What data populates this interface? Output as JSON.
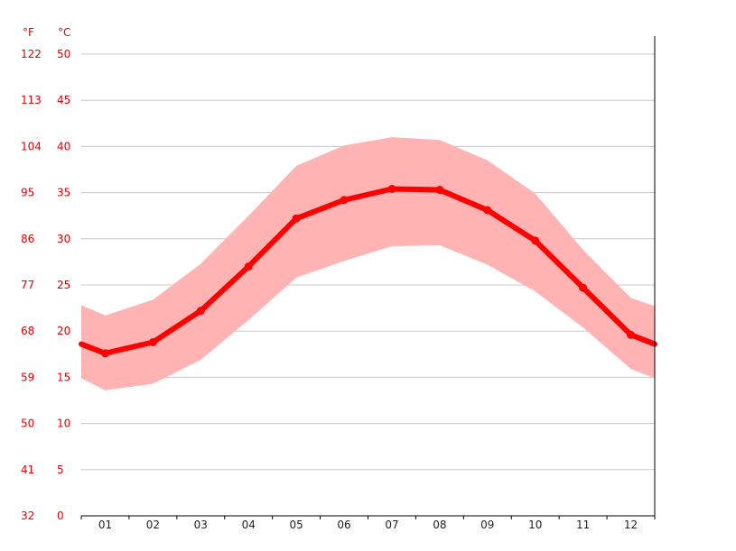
{
  "chart_data": {
    "type": "line",
    "y_unit_left": "°F",
    "y_unit_right": "°C",
    "categories": [
      "01",
      "02",
      "03",
      "04",
      "05",
      "06",
      "07",
      "08",
      "09",
      "10",
      "11",
      "12"
    ],
    "yticks_c": [
      0,
      5,
      10,
      15,
      20,
      25,
      30,
      35,
      40,
      45,
      50
    ],
    "yticks_f": [
      32,
      41,
      50,
      59,
      68,
      77,
      86,
      95,
      104,
      113,
      122
    ],
    "ylim": [
      0,
      50
    ],
    "grid": true,
    "series": [
      {
        "values": [
          17.6,
          18.8,
          22.2,
          27.0,
          32.2,
          34.2,
          35.4,
          35.3,
          33.1,
          29.8,
          24.7,
          19.6
        ],
        "color": "#ff0000"
      }
    ],
    "band": {
      "upper": [
        21.7,
        23.4,
        27.3,
        32.5,
        37.9,
        40.1,
        41.0,
        40.7,
        38.5,
        34.9,
        28.8,
        23.6
      ],
      "lower": [
        13.6,
        14.3,
        16.9,
        21.2,
        25.8,
        27.6,
        29.2,
        29.3,
        27.2,
        24.3,
        20.4,
        15.9
      ],
      "color": "#ffb3b3"
    },
    "edges": {
      "left": [
        22.8,
        18.6,
        14.9
      ],
      "right": [
        22.7,
        18.6,
        14.9
      ]
    }
  }
}
